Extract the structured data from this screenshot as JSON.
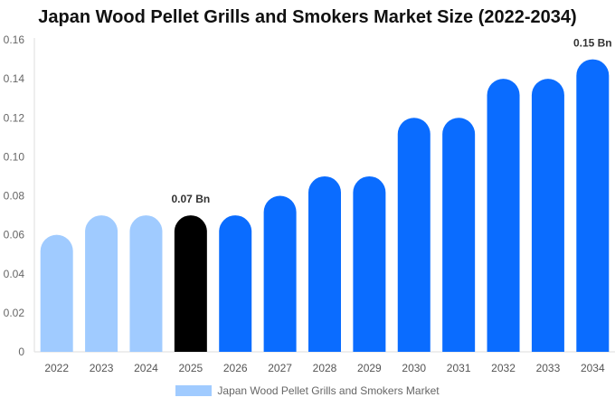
{
  "title": "Japan Wood Pellet Grills and Smokers Market Size (2022-2034)",
  "chart_data": {
    "type": "bar",
    "title": "Japan Wood Pellet Grills and Smokers Market Size (2022-2034)",
    "categories": [
      "2022",
      "2023",
      "2024",
      "2025",
      "2026",
      "2027",
      "2028",
      "2029",
      "2030",
      "2031",
      "2032",
      "2033",
      "2034"
    ],
    "series": [
      {
        "name": "Japan Wood Pellet Grills and Smokers Market",
        "values": [
          0.06,
          0.07,
          0.07,
          0.07,
          0.07,
          0.08,
          0.09,
          0.09,
          0.12,
          0.12,
          0.14,
          0.14,
          0.15
        ]
      }
    ],
    "bar_colors": [
      "#a0cbff",
      "#a0cbff",
      "#a0cbff",
      "#000000",
      "#0a6cff",
      "#0a6cff",
      "#0a6cff",
      "#0a6cff",
      "#0a6cff",
      "#0a6cff",
      "#0a6cff",
      "#0a6cff",
      "#0a6cff"
    ],
    "ylim": [
      0,
      0.16
    ],
    "yticks": [
      "0",
      "0.02",
      "0.04",
      "0.06",
      "0.08",
      "0.10",
      "0.12",
      "0.14",
      "0.16"
    ],
    "annotations": [
      {
        "category": "2025",
        "text": "0.07 Bn"
      },
      {
        "category": "2034",
        "text": "0.15 Bn"
      }
    ],
    "grid": false,
    "legend_position": "bottom"
  },
  "legend": {
    "label": "Japan Wood Pellet Grills and Smokers Market",
    "color": "#a0cbff"
  }
}
